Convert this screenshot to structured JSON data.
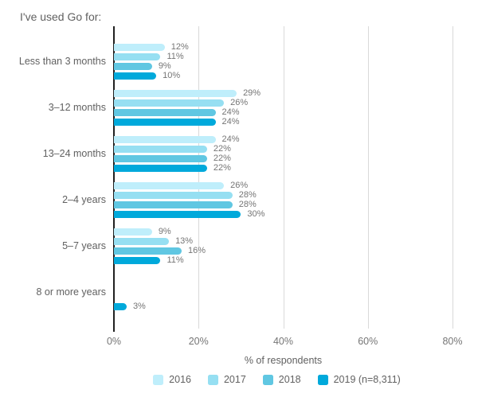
{
  "title": "I've used Go for:",
  "chart_data": {
    "type": "bar",
    "orientation": "horizontal",
    "title": "I've used Go for:",
    "categories": [
      "Less than 3 months",
      "3–12 months",
      "13–24 months",
      "2–4 years",
      "5–7 years",
      "8 or more years"
    ],
    "series": [
      {
        "name": "2016",
        "color": "#bfeefb",
        "values": [
          12,
          29,
          24,
          26,
          9,
          null
        ]
      },
      {
        "name": "2017",
        "color": "#96dff2",
        "values": [
          11,
          26,
          22,
          28,
          13,
          null
        ]
      },
      {
        "name": "2018",
        "color": "#60c7e2",
        "values": [
          9,
          24,
          22,
          28,
          16,
          null
        ]
      },
      {
        "name": "2019 (n=8,311)",
        "color": "#00a9db",
        "values": [
          10,
          24,
          22,
          30,
          11,
          3
        ]
      }
    ],
    "xlabel": "% of respondents",
    "x_ticks": [
      "0%",
      "20%",
      "40%",
      "60%",
      "80%"
    ],
    "xlim": [
      0,
      80
    ],
    "value_suffix": "%",
    "grid": "vertical",
    "legend_position": "bottom",
    "colors": {
      "axis": "#212121",
      "gridline": "#d9d9d9",
      "label_text": "#616161",
      "value_text": "#757575"
    }
  }
}
